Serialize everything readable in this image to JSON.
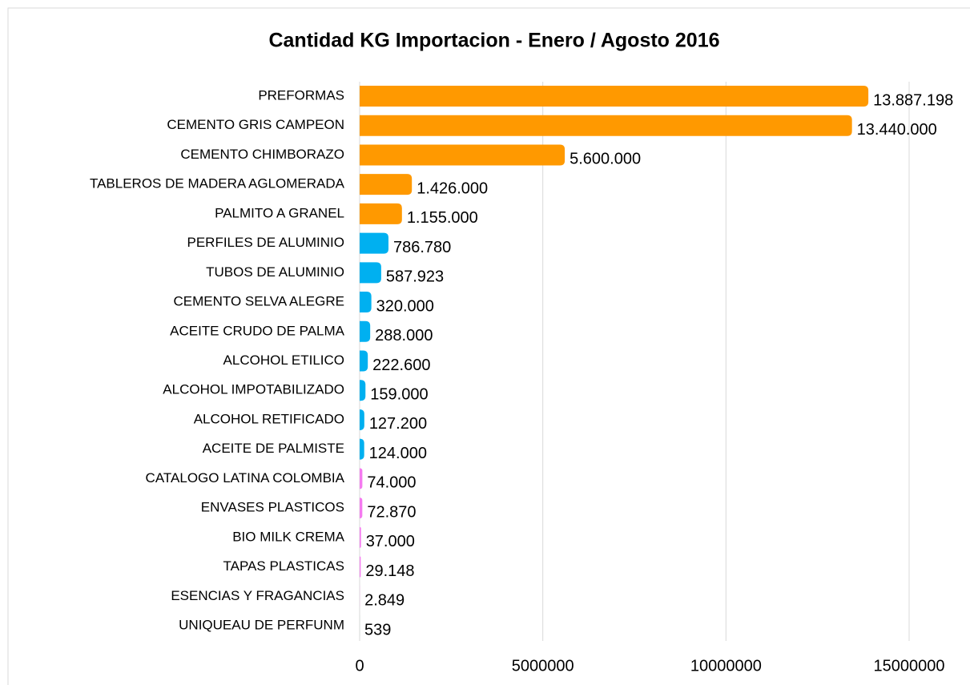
{
  "chart_data": {
    "type": "bar",
    "orientation": "horizontal",
    "title": "Cantidad KG Importacion -  Enero / Agosto 2016",
    "categories": [
      "PREFORMAS",
      "CEMENTO GRIS CAMPEON",
      "CEMENTO CHIMBORAZO",
      "TABLEROS DE MADERA AGLOMERADA",
      "PALMITO A GRANEL",
      "PERFILES DE ALUMINIO",
      "TUBOS DE ALUMINIO",
      "CEMENTO SELVA ALEGRE",
      "ACEITE CRUDO DE PALMA",
      "ALCOHOL ETILICO",
      "ALCOHOL IMPOTABILIZADO",
      "ALCOHOL RETIFICADO",
      "ACEITE DE PALMISTE",
      "CATALOGO LATINA COLOMBIA",
      "ENVASES PLASTICOS",
      "BIO MILK CREMA",
      "TAPAS PLASTICAS",
      "ESENCIAS Y FRAGANCIAS",
      "UNIQUEAU DE PERFUNM"
    ],
    "values": [
      13887198,
      13440000,
      5600000,
      1426000,
      1155000,
      786780,
      587923,
      320000,
      288000,
      222600,
      159000,
      127200,
      124000,
      74000,
      72870,
      37000,
      29148,
      2849,
      539
    ],
    "value_labels": [
      "13.887.198",
      "13.440.000",
      "5.600.000",
      "1.426.000",
      "1.155.000",
      "786.780",
      "587.923",
      "320.000",
      "288.000",
      "222.600",
      "159.000",
      "127.200",
      "124.000",
      "74.000",
      "72.870",
      "37.000",
      "29.148",
      "2.849",
      "539"
    ],
    "colors": [
      "#ff9900",
      "#ff9900",
      "#ff9900",
      "#ff9900",
      "#ff9900",
      "#00b0f0",
      "#00b0f0",
      "#00b0f0",
      "#00b0f0",
      "#00b0f0",
      "#00b0f0",
      "#00b0f0",
      "#00b0f0",
      "#f57af0",
      "#f57af0",
      "#f57af0",
      "#f57af0",
      "#f57af0",
      "#00b050"
    ],
    "xlim": [
      0,
      15000000
    ],
    "xticks": [
      0,
      5000000,
      10000000,
      15000000
    ],
    "grid": true
  }
}
